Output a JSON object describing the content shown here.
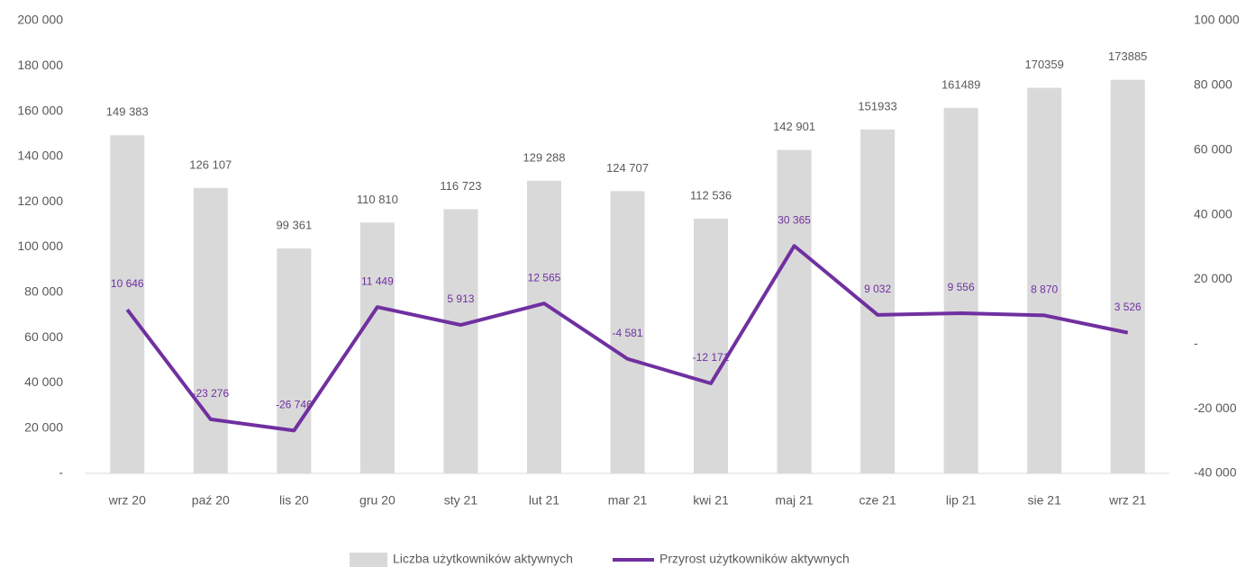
{
  "chart_data": {
    "type": "bar-line",
    "categories": [
      "wrz 20",
      "paź 20",
      "lis 20",
      "gru 20",
      "sty 21",
      "lut 21",
      "mar 21",
      "kwi 21",
      "maj 21",
      "cze 21",
      "lip 21",
      "sie 21",
      "wrz 21"
    ],
    "series": [
      {
        "name": "Liczba użytkowników aktywnych",
        "type": "bar",
        "color": "#d9d9d9",
        "values": [
          149383,
          126107,
          99361,
          110810,
          116723,
          129288,
          124707,
          112536,
          142901,
          151933,
          161489,
          170359,
          173885
        ],
        "value_labels": [
          "149 383",
          "126 107",
          "99 361",
          "110 810",
          "116 723",
          "129 288",
          "124 707",
          "112 536",
          "142 901",
          "151933",
          "161489",
          "170359",
          "173885"
        ]
      },
      {
        "name": "Przyrost użytkowników aktywnych",
        "type": "line",
        "axis": "y2",
        "color": "#7030a0",
        "values": [
          10646,
          -23276,
          -26746,
          11449,
          5913,
          12565,
          -4581,
          -12171,
          30365,
          9032,
          9556,
          8870,
          3526
        ],
        "value_labels": [
          "10 646",
          "-23 276",
          "-26 746",
          "11 449",
          "5 913",
          "12 565",
          "-4 581",
          "-12 171",
          "30 365",
          "9 032",
          "9 556",
          "8 870",
          "3 526"
        ]
      }
    ],
    "ylim": [
      0,
      200000
    ],
    "yticks": [
      {
        "value": 0,
        "label": "-"
      },
      {
        "value": 20000,
        "label": "20 000"
      },
      {
        "value": 40000,
        "label": "40 000"
      },
      {
        "value": 60000,
        "label": "60 000"
      },
      {
        "value": 80000,
        "label": "80 000"
      },
      {
        "value": 100000,
        "label": "100 000"
      },
      {
        "value": 120000,
        "label": "120 000"
      },
      {
        "value": 140000,
        "label": "140 000"
      },
      {
        "value": 160000,
        "label": "160 000"
      },
      {
        "value": 180000,
        "label": "180 000"
      },
      {
        "value": 200000,
        "label": "200 000"
      }
    ],
    "y2lim": [
      -40000,
      100000
    ],
    "y2ticks": [
      {
        "value": -40000,
        "label": "-40 000"
      },
      {
        "value": -20000,
        "label": "-20 000"
      },
      {
        "value": 0,
        "label": "-"
      },
      {
        "value": 20000,
        "label": "20 000"
      },
      {
        "value": 40000,
        "label": "40 000"
      },
      {
        "value": 60000,
        "label": "60 000"
      },
      {
        "value": 80000,
        "label": "80 000"
      },
      {
        "value": 100000,
        "label": "100 000"
      }
    ],
    "legend": "bottom",
    "grid": false
  }
}
